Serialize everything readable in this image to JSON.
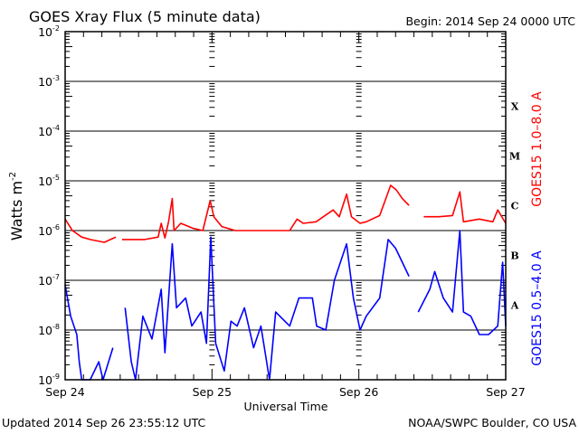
{
  "chart_data": {
    "type": "line",
    "title": "GOES Xray Flux (5 minute data)",
    "begin_label": "Begin:  2014 Sep 24 0000 UTC",
    "xlabel": "Universal Time",
    "ylabel": "Watts m",
    "ylabel_sup": "-2",
    "yscale": "log",
    "ylim": [
      1e-09,
      0.01
    ],
    "xlim_hours": [
      0,
      72
    ],
    "y_ticks": [
      {
        "base": "10",
        "exp": "-2",
        "value": 0.01
      },
      {
        "base": "10",
        "exp": "-3",
        "value": 0.001
      },
      {
        "base": "10",
        "exp": "-4",
        "value": 0.0001
      },
      {
        "base": "10",
        "exp": "-5",
        "value": 1e-05
      },
      {
        "base": "10",
        "exp": "-6",
        "value": 1e-06
      },
      {
        "base": "10",
        "exp": "-7",
        "value": 1e-07
      },
      {
        "base": "10",
        "exp": "-8",
        "value": 1e-08
      },
      {
        "base": "10",
        "exp": "-9",
        "value": 1e-09
      }
    ],
    "x_ticks": [
      {
        "label": "Sep 24",
        "hour": 0
      },
      {
        "label": "Sep 25",
        "hour": 24
      },
      {
        "label": "Sep 26",
        "hour": 48
      },
      {
        "label": "Sep 27",
        "hour": 72
      }
    ],
    "flare_classes": [
      {
        "label": "X",
        "value": 0.000316
      },
      {
        "label": "M",
        "value": 3.16e-05
      },
      {
        "label": "C",
        "value": 3.16e-06
      },
      {
        "label": "B",
        "value": 3.16e-07
      },
      {
        "label": "A",
        "value": 3.16e-08
      }
    ],
    "grid": true,
    "series": [
      {
        "name": "GOES15 1.0–8.0 A",
        "color": "#ff0000",
        "points": [
          [
            0,
            1.7e-06
          ],
          [
            1.2,
            1e-06
          ],
          [
            2.7,
            7.4e-07
          ],
          [
            4.1,
            6.6e-07
          ],
          [
            6.4,
            5.8e-07
          ],
          [
            7.4,
            6.6e-07
          ],
          [
            8.3,
            7.4e-07
          ],
          null,
          [
            9.3,
            6.6e-07
          ],
          [
            13,
            6.6e-07
          ],
          [
            15.2,
            7.4e-07
          ],
          [
            15.7,
            1.4e-06
          ],
          [
            16.3,
            7.1e-07
          ],
          [
            16.9,
            1.5e-06
          ],
          [
            17.5,
            4.4e-06
          ],
          [
            17.8,
            1e-06
          ],
          [
            18.9,
            1.4e-06
          ],
          [
            21,
            1.1e-06
          ],
          [
            22.5,
            1e-06
          ],
          [
            23.7,
            4e-06
          ],
          [
            24.3,
            1.9e-06
          ],
          [
            25.6,
            1.2e-06
          ],
          [
            27.8,
            1e-06
          ],
          [
            32,
            1e-06
          ],
          [
            36.7,
            1e-06
          ],
          [
            37.9,
            1.7e-06
          ],
          [
            38.9,
            1.4e-06
          ],
          [
            41,
            1.5e-06
          ],
          [
            43.8,
            2.6e-06
          ],
          [
            44.8,
            1.9e-06
          ],
          [
            46,
            5.4e-06
          ],
          [
            46.8,
            1.9e-06
          ],
          [
            48.2,
            1.4e-06
          ],
          [
            49.2,
            1.5e-06
          ],
          [
            51.4,
            2e-06
          ],
          [
            53.2,
            8.1e-06
          ],
          [
            54.1,
            6.6e-06
          ],
          [
            55.1,
            4.4e-06
          ],
          [
            56.2,
            3.2e-06
          ],
          null,
          [
            58.6,
            1.9e-06
          ],
          [
            61.1,
            1.9e-06
          ],
          [
            63.3,
            2e-06
          ],
          [
            64.5,
            6e-06
          ],
          [
            65.1,
            1.5e-06
          ],
          [
            67.7,
            1.7e-06
          ],
          [
            69.9,
            1.5e-06
          ],
          [
            70.7,
            2.6e-06
          ],
          [
            72,
            1.4e-06
          ]
        ]
      },
      {
        "name": "GOES15 0.5–4.0 A",
        "color": "#0000ff",
        "points": [
          [
            0,
            8.1e-08
          ],
          [
            0.9,
            1.9e-08
          ],
          [
            1.9,
            8.1e-09
          ],
          [
            2.3,
            2.3e-09
          ],
          [
            2.7,
            1e-09
          ],
          [
            4.1,
            1e-09
          ],
          [
            5.5,
            2.3e-09
          ],
          [
            6.2,
            1e-09
          ],
          [
            7.8,
            4.4e-09
          ],
          null,
          [
            9.8,
            2.8e-08
          ],
          [
            10.8,
            2.3e-09
          ],
          [
            11.5,
            1e-09
          ],
          [
            12.7,
            1.9e-08
          ],
          [
            14.2,
            6.6e-09
          ],
          [
            15.7,
            6.6e-08
          ],
          [
            16.3,
            3.5e-09
          ],
          [
            17.5,
            5.4e-07
          ],
          [
            18.2,
            2.8e-08
          ],
          [
            19.7,
            4.4e-08
          ],
          [
            20.7,
            1.2e-08
          ],
          [
            22.2,
            2.3e-08
          ],
          [
            23.1,
            5.4e-09
          ],
          [
            23.8,
            7.4e-07
          ],
          [
            24.6,
            5.4e-09
          ],
          [
            26,
            1.5e-09
          ],
          [
            27.1,
            1.5e-08
          ],
          [
            28.1,
            1.2e-08
          ],
          [
            29.3,
            2.8e-08
          ],
          [
            30.8,
            4.4e-09
          ],
          [
            32,
            1.2e-08
          ],
          [
            33.4,
            1e-09
          ],
          [
            34.4,
            2.3e-08
          ],
          [
            36.7,
            1.2e-08
          ],
          [
            38.2,
            4.4e-08
          ],
          [
            40.4,
            4.4e-08
          ],
          [
            41.1,
            1.2e-08
          ],
          [
            42.6,
            1e-08
          ],
          [
            44,
            1e-07
          ],
          [
            46,
            5.4e-07
          ],
          [
            47.1,
            4.4e-08
          ],
          [
            48.2,
            1e-08
          ],
          [
            49.2,
            1.9e-08
          ],
          [
            51.4,
            4.4e-08
          ],
          [
            52.8,
            6.6e-07
          ],
          [
            54,
            4.4e-07
          ],
          [
            55.1,
            2.3e-07
          ],
          [
            56.2,
            1.2e-07
          ],
          null,
          [
            57.7,
            2.3e-08
          ],
          [
            59.6,
            6.6e-08
          ],
          [
            60.4,
            1.5e-07
          ],
          [
            61.8,
            4.4e-08
          ],
          [
            63.3,
            2.3e-08
          ],
          [
            64.5,
            1e-06
          ],
          [
            65.1,
            2.3e-08
          ],
          [
            66.3,
            1.9e-08
          ],
          [
            67.7,
            8.1e-09
          ],
          [
            69.2,
            8.1e-09
          ],
          [
            70.7,
            1.2e-08
          ],
          [
            71.5,
            2.3e-07
          ],
          [
            72,
            1.2e-08
          ]
        ]
      }
    ]
  },
  "footer": {
    "updated": "Updated 2014 Sep 26 23:55:12 UTC",
    "credit": "NOAA/SWPC Boulder, CO USA"
  }
}
